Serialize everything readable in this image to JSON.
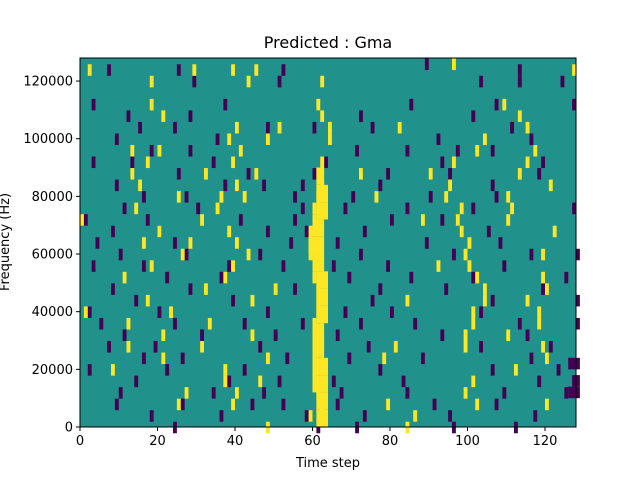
{
  "chart_data": {
    "type": "heatmap",
    "title": "Predicted : Gma",
    "xlabel": "Time step",
    "ylabel": "Frequency (Hz)",
    "xlim": [
      0,
      128
    ],
    "ylim": [
      0,
      128000
    ],
    "xticks": [
      0,
      20,
      40,
      60,
      80,
      100,
      120
    ],
    "yticks": [
      0,
      20000,
      40000,
      60000,
      80000,
      100000,
      120000
    ],
    "ytick_labels": [
      "0",
      "20000",
      "40000",
      "60000",
      "80000",
      "100000",
      "120000"
    ],
    "colormap": {
      "background": "#21918c",
      "low": "#440154",
      "high": "#fde725"
    },
    "grid": false,
    "cells_low": [
      [
        7,
        124000
      ],
      [
        25,
        124000
      ],
      [
        52,
        124000
      ],
      [
        89,
        126000
      ],
      [
        113,
        124000
      ],
      [
        29,
        120000
      ],
      [
        51,
        120000
      ],
      [
        103,
        120000
      ],
      [
        113,
        120000
      ],
      [
        124,
        120000
      ],
      [
        3,
        112000
      ],
      [
        37,
        112000
      ],
      [
        85,
        112000
      ],
      [
        107,
        112000
      ],
      [
        127,
        112000
      ],
      [
        12,
        108000
      ],
      [
        28,
        108000
      ],
      [
        72,
        108000
      ],
      [
        101,
        108000
      ],
      [
        15,
        104000
      ],
      [
        24,
        104000
      ],
      [
        48,
        104000
      ],
      [
        60,
        104000
      ],
      [
        75,
        104000
      ],
      [
        111,
        104000
      ],
      [
        9,
        100000
      ],
      [
        35,
        100000
      ],
      [
        92,
        100000
      ],
      [
        116,
        100000
      ],
      [
        18,
        96000
      ],
      [
        28,
        96000
      ],
      [
        71,
        96000
      ],
      [
        84,
        96000
      ],
      [
        97,
        96000
      ],
      [
        106,
        96000
      ],
      [
        3,
        92000
      ],
      [
        13,
        92000
      ],
      [
        34,
        92000
      ],
      [
        63,
        92000
      ],
      [
        93,
        92000
      ],
      [
        119,
        92000
      ],
      [
        25,
        88000
      ],
      [
        43,
        88000
      ],
      [
        60,
        88000
      ],
      [
        79,
        88000
      ],
      [
        95,
        88000
      ],
      [
        118,
        88000
      ],
      [
        9,
        84000
      ],
      [
        37,
        84000
      ],
      [
        47,
        84000
      ],
      [
        57,
        84000
      ],
      [
        77,
        84000
      ],
      [
        106,
        84000
      ],
      [
        16,
        80000
      ],
      [
        27,
        80000
      ],
      [
        55,
        80000
      ],
      [
        70,
        80000
      ],
      [
        90,
        80000
      ],
      [
        107,
        80000
      ],
      [
        11,
        76000
      ],
      [
        30,
        76000
      ],
      [
        57,
        76000
      ],
      [
        68,
        76000
      ],
      [
        84,
        76000
      ],
      [
        101,
        76000
      ],
      [
        127,
        76000
      ],
      [
        1,
        72000
      ],
      [
        17,
        72000
      ],
      [
        41,
        72000
      ],
      [
        55,
        72000
      ],
      [
        80,
        72000
      ],
      [
        93,
        72000
      ],
      [
        8,
        68000
      ],
      [
        20,
        68000
      ],
      [
        48,
        68000
      ],
      [
        58,
        68000
      ],
      [
        73,
        68000
      ],
      [
        105,
        68000
      ],
      [
        4,
        64000
      ],
      [
        24,
        64000
      ],
      [
        54,
        64000
      ],
      [
        66,
        64000
      ],
      [
        89,
        64000
      ],
      [
        108,
        64000
      ],
      [
        10,
        60000
      ],
      [
        27,
        60000
      ],
      [
        46,
        60000
      ],
      [
        72,
        60000
      ],
      [
        96,
        60000
      ],
      [
        116,
        60000
      ],
      [
        128,
        60000
      ],
      [
        3,
        56000
      ],
      [
        16,
        56000
      ],
      [
        38,
        56000
      ],
      [
        52,
        56000
      ],
      [
        65,
        56000
      ],
      [
        79,
        56000
      ],
      [
        109,
        56000
      ],
      [
        22,
        52000
      ],
      [
        36,
        52000
      ],
      [
        69,
        52000
      ],
      [
        85,
        52000
      ],
      [
        101,
        52000
      ],
      [
        125,
        52000
      ],
      [
        8,
        48000
      ],
      [
        28,
        48000
      ],
      [
        55,
        48000
      ],
      [
        77,
        48000
      ],
      [
        94,
        48000
      ],
      [
        119,
        48000
      ],
      [
        14,
        44000
      ],
      [
        39,
        44000
      ],
      [
        62,
        44000
      ],
      [
        75,
        44000
      ],
      [
        106,
        44000
      ],
      [
        128,
        44000
      ],
      [
        2,
        40000
      ],
      [
        20,
        40000
      ],
      [
        48,
        40000
      ],
      [
        68,
        40000
      ],
      [
        80,
        40000
      ],
      [
        103,
        40000
      ],
      [
        5,
        36000
      ],
      [
        24,
        36000
      ],
      [
        42,
        36000
      ],
      [
        57,
        36000
      ],
      [
        72,
        36000
      ],
      [
        86,
        36000
      ],
      [
        113,
        36000
      ],
      [
        128,
        36000
      ],
      [
        11,
        32000
      ],
      [
        31,
        32000
      ],
      [
        50,
        32000
      ],
      [
        66,
        32000
      ],
      [
        93,
        32000
      ],
      [
        115,
        32000
      ],
      [
        7,
        28000
      ],
      [
        19,
        28000
      ],
      [
        46,
        28000
      ],
      [
        74,
        28000
      ],
      [
        103,
        28000
      ],
      [
        121,
        28000
      ],
      [
        16,
        24000
      ],
      [
        26,
        24000
      ],
      [
        53,
        24000
      ],
      [
        69,
        24000
      ],
      [
        88,
        24000
      ],
      [
        116,
        24000
      ],
      [
        2,
        20000
      ],
      [
        22,
        20000
      ],
      [
        42,
        20000
      ],
      [
        60,
        20000
      ],
      [
        77,
        20000
      ],
      [
        106,
        20000
      ],
      [
        123,
        20000
      ],
      [
        14,
        16000
      ],
      [
        38,
        16000
      ],
      [
        51,
        16000
      ],
      [
        65,
        16000
      ],
      [
        83,
        16000
      ],
      [
        118,
        16000
      ],
      [
        10,
        12000
      ],
      [
        34,
        12000
      ],
      [
        47,
        12000
      ],
      [
        67,
        12000
      ],
      [
        84,
        12000
      ],
      [
        109,
        12000
      ],
      [
        125,
        12000
      ],
      [
        9,
        8000
      ],
      [
        26,
        8000
      ],
      [
        44,
        8000
      ],
      [
        52,
        8000
      ],
      [
        66,
        8000
      ],
      [
        91,
        8000
      ],
      [
        107,
        8000
      ],
      [
        18,
        4000
      ],
      [
        36,
        4000
      ],
      [
        58,
        4000
      ],
      [
        73,
        4000
      ],
      [
        95,
        4000
      ],
      [
        117,
        4000
      ],
      [
        24,
        0
      ],
      [
        61,
        0
      ],
      [
        71,
        0
      ],
      [
        96,
        0
      ],
      [
        112,
        0
      ]
    ],
    "cells_high": [
      [
        2,
        124000
      ],
      [
        29,
        124000
      ],
      [
        39,
        124000
      ],
      [
        45,
        124000
      ],
      [
        96,
        126000
      ],
      [
        127,
        124000
      ],
      [
        18,
        120000
      ],
      [
        43,
        120000
      ],
      [
        62,
        120000
      ],
      [
        18,
        112000
      ],
      [
        61,
        112000
      ],
      [
        109,
        112000
      ],
      [
        21,
        108000
      ],
      [
        62,
        108000
      ],
      [
        113,
        108000
      ],
      [
        40,
        104000
      ],
      [
        51,
        104000
      ],
      [
        64,
        104000
      ],
      [
        82,
        104000
      ],
      [
        115,
        104000
      ],
      [
        38,
        100000
      ],
      [
        48,
        100000
      ],
      [
        64,
        100000
      ],
      [
        104,
        100000
      ],
      [
        13,
        96000
      ],
      [
        20,
        96000
      ],
      [
        41,
        96000
      ],
      [
        102,
        96000
      ],
      [
        117,
        96000
      ],
      [
        17,
        92000
      ],
      [
        39,
        92000
      ],
      [
        62,
        92000
      ],
      [
        96,
        92000
      ],
      [
        115,
        92000
      ],
      [
        13,
        88000
      ],
      [
        32,
        88000
      ],
      [
        45,
        88000
      ],
      [
        72,
        88000
      ],
      [
        90,
        88000
      ],
      [
        113,
        88000
      ],
      [
        15,
        84000
      ],
      [
        40,
        84000
      ],
      [
        62,
        84000
      ],
      [
        95,
        84000
      ],
      [
        121,
        84000
      ],
      [
        25,
        80000
      ],
      [
        36,
        80000
      ],
      [
        42,
        80000
      ],
      [
        61,
        80000
      ],
      [
        76,
        80000
      ],
      [
        94,
        80000
      ],
      [
        110,
        80000
      ],
      [
        14,
        76000
      ],
      [
        35,
        76000
      ],
      [
        60,
        76000
      ],
      [
        98,
        76000
      ],
      [
        111,
        76000
      ],
      [
        0,
        72000
      ],
      [
        31,
        72000
      ],
      [
        60,
        72000
      ],
      [
        88,
        72000
      ],
      [
        97,
        72000
      ],
      [
        110,
        72000
      ],
      [
        20,
        68000
      ],
      [
        38,
        68000
      ],
      [
        59,
        68000
      ],
      [
        98,
        68000
      ],
      [
        122,
        68000
      ],
      [
        16,
        64000
      ],
      [
        28,
        64000
      ],
      [
        40,
        64000
      ],
      [
        59,
        64000
      ],
      [
        100,
        64000
      ],
      [
        26,
        60000
      ],
      [
        43,
        60000
      ],
      [
        59,
        60000
      ],
      [
        99,
        60000
      ],
      [
        119,
        60000
      ],
      [
        18,
        56000
      ],
      [
        39,
        56000
      ],
      [
        60,
        56000
      ],
      [
        92,
        56000
      ],
      [
        100,
        56000
      ],
      [
        11,
        52000
      ],
      [
        37,
        52000
      ],
      [
        60,
        52000
      ],
      [
        102,
        52000
      ],
      [
        119,
        52000
      ],
      [
        32,
        48000
      ],
      [
        50,
        48000
      ],
      [
        61,
        48000
      ],
      [
        104,
        48000
      ],
      [
        120,
        48000
      ],
      [
        17,
        44000
      ],
      [
        44,
        44000
      ],
      [
        61,
        44000
      ],
      [
        84,
        44000
      ],
      [
        104,
        44000
      ],
      [
        115,
        44000
      ],
      [
        1,
        40000
      ],
      [
        23,
        40000
      ],
      [
        61,
        40000
      ],
      [
        101,
        40000
      ],
      [
        118,
        40000
      ],
      [
        12,
        36000
      ],
      [
        33,
        36000
      ],
      [
        60,
        36000
      ],
      [
        101,
        36000
      ],
      [
        118,
        36000
      ],
      [
        21,
        32000
      ],
      [
        44,
        32000
      ],
      [
        61,
        32000
      ],
      [
        99,
        32000
      ],
      [
        110,
        32000
      ],
      [
        12,
        28000
      ],
      [
        31,
        28000
      ],
      [
        60,
        28000
      ],
      [
        81,
        28000
      ],
      [
        99,
        28000
      ],
      [
        119,
        28000
      ],
      [
        21,
        24000
      ],
      [
        48,
        24000
      ],
      [
        60,
        24000
      ],
      [
        78,
        24000
      ],
      [
        120,
        24000
      ],
      [
        8,
        20000
      ],
      [
        37,
        20000
      ],
      [
        60,
        20000
      ],
      [
        112,
        20000
      ],
      [
        37,
        16000
      ],
      [
        46,
        16000
      ],
      [
        62,
        16000
      ],
      [
        101,
        16000
      ],
      [
        27,
        12000
      ],
      [
        40,
        12000
      ],
      [
        61,
        12000
      ],
      [
        99,
        12000
      ],
      [
        25,
        8000
      ],
      [
        39,
        8000
      ],
      [
        62,
        8000
      ],
      [
        79,
        8000
      ],
      [
        102,
        8000
      ],
      [
        120,
        8000
      ],
      [
        59,
        4000
      ],
      [
        63,
        4000
      ],
      [
        86,
        4000
      ],
      [
        48,
        0
      ],
      [
        84,
        0
      ]
    ],
    "bands_high": [
      [
        61,
        86000,
        2
      ],
      [
        61,
        80000,
        3
      ],
      [
        61,
        74000,
        3
      ],
      [
        60,
        68000,
        3
      ],
      [
        59,
        62000,
        4
      ],
      [
        60,
        56000,
        3
      ],
      [
        61,
        50000,
        3
      ],
      [
        61,
        44000,
        3
      ],
      [
        61,
        38000,
        3
      ],
      [
        60,
        32000,
        3
      ],
      [
        60,
        26000,
        3
      ],
      [
        60,
        20000,
        4
      ],
      [
        60,
        14000,
        4
      ],
      [
        61,
        8000,
        3
      ],
      [
        61,
        2000,
        3
      ]
    ],
    "bands_low": [
      [
        126,
        22000,
        3
      ],
      [
        127,
        16000,
        2
      ],
      [
        126,
        12000,
        3
      ]
    ]
  }
}
